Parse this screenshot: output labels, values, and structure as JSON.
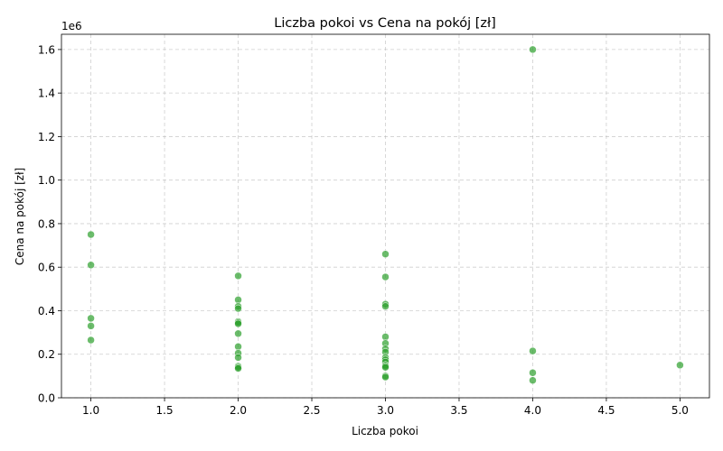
{
  "chart_data": {
    "type": "scatter",
    "title": "Liczba pokoi vs Cena na pokój [zł]",
    "xlabel": "Liczba pokoi",
    "ylabel": "Cena na pokój [zł]",
    "y_offset_label": "1e6",
    "xlim": [
      0.8,
      5.2
    ],
    "ylim": [
      0,
      1.67
    ],
    "x_ticks": [
      1.0,
      1.5,
      2.0,
      2.5,
      3.0,
      3.5,
      4.0,
      4.5,
      5.0
    ],
    "x_tick_labels": [
      "1.0",
      "1.5",
      "2.0",
      "2.5",
      "3.0",
      "3.5",
      "4.0",
      "4.5",
      "5.0"
    ],
    "y_ticks": [
      0.0,
      0.2,
      0.4,
      0.6,
      0.8,
      1.0,
      1.2,
      1.4,
      1.6
    ],
    "y_tick_labels": [
      "0.0",
      "0.2",
      "0.4",
      "0.6",
      "0.8",
      "1.0",
      "1.2",
      "1.4",
      "1.6"
    ],
    "grid": true,
    "marker_color": "#2ca02c",
    "points": [
      {
        "x": 1,
        "y": 0.75
      },
      {
        "x": 1,
        "y": 0.61
      },
      {
        "x": 1,
        "y": 0.365
      },
      {
        "x": 1,
        "y": 0.33
      },
      {
        "x": 1,
        "y": 0.265
      },
      {
        "x": 2,
        "y": 0.56
      },
      {
        "x": 2,
        "y": 0.45
      },
      {
        "x": 2,
        "y": 0.42
      },
      {
        "x": 2,
        "y": 0.41
      },
      {
        "x": 2,
        "y": 0.35
      },
      {
        "x": 2,
        "y": 0.345
      },
      {
        "x": 2,
        "y": 0.34
      },
      {
        "x": 2,
        "y": 0.295
      },
      {
        "x": 2,
        "y": 0.235
      },
      {
        "x": 2,
        "y": 0.205
      },
      {
        "x": 2,
        "y": 0.185
      },
      {
        "x": 2,
        "y": 0.145
      },
      {
        "x": 2,
        "y": 0.14
      },
      {
        "x": 2,
        "y": 0.135
      },
      {
        "x": 3,
        "y": 0.66
      },
      {
        "x": 3,
        "y": 0.555
      },
      {
        "x": 3,
        "y": 0.43
      },
      {
        "x": 3,
        "y": 0.42
      },
      {
        "x": 3,
        "y": 0.28
      },
      {
        "x": 3,
        "y": 0.25
      },
      {
        "x": 3,
        "y": 0.225
      },
      {
        "x": 3,
        "y": 0.21
      },
      {
        "x": 3,
        "y": 0.185
      },
      {
        "x": 3,
        "y": 0.175
      },
      {
        "x": 3,
        "y": 0.165
      },
      {
        "x": 3,
        "y": 0.15
      },
      {
        "x": 3,
        "y": 0.145
      },
      {
        "x": 3,
        "y": 0.14
      },
      {
        "x": 3,
        "y": 0.1
      },
      {
        "x": 3,
        "y": 0.095
      },
      {
        "x": 4,
        "y": 1.6
      },
      {
        "x": 4,
        "y": 0.215
      },
      {
        "x": 4,
        "y": 0.115
      },
      {
        "x": 4,
        "y": 0.08
      },
      {
        "x": 5,
        "y": 0.15
      }
    ]
  }
}
